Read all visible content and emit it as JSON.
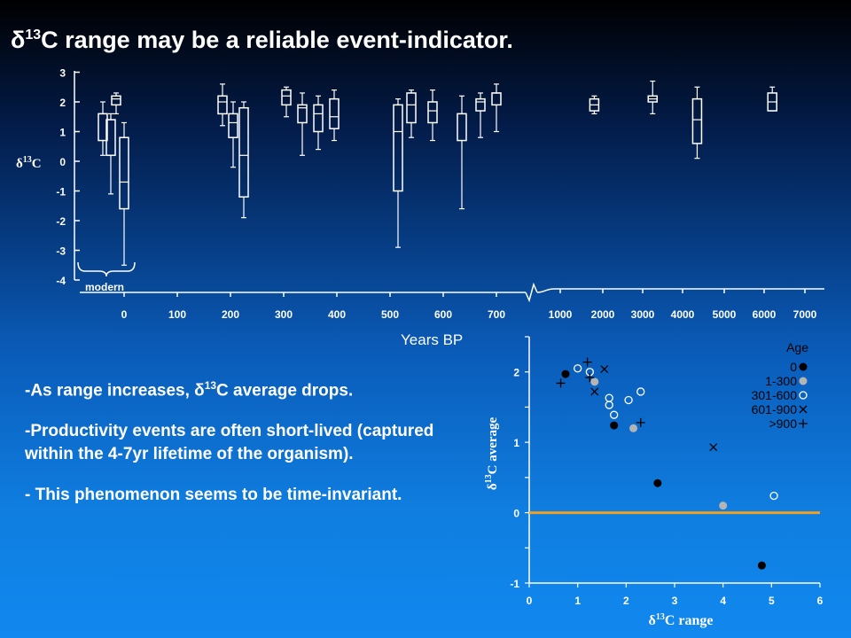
{
  "slide": {
    "title_prefix": "δ",
    "title_sup": "13",
    "title_suffix": "C range may be a reliable event-indicator.",
    "bullets": [
      {
        "pre": "-As range increases, δ",
        "sup": "13",
        "post": "C average drops."
      },
      {
        "pre": "-Productivity events are often short-lived (captured within the 4-7yr lifetime of the organism).",
        "sup": "",
        "post": ""
      },
      {
        "pre": "- This phenomenon seems to be time-invariant.",
        "sup": "",
        "post": ""
      }
    ]
  },
  "colors": {
    "zero_line": "#f0a020",
    "open_marker": "#ffffff",
    "filled_black": "#000000",
    "filled_gray": "#b4b4b4"
  },
  "chart_data": [
    {
      "type": "box",
      "ylabel": "δ13C",
      "ylabel_parts": {
        "base": "δ",
        "sup": "13",
        "tail": "C"
      },
      "xlabel": "Years BP",
      "ylim": [
        -4,
        3
      ],
      "yticks": [
        "3",
        "2",
        "1",
        "0",
        "-1",
        "-2",
        "-3",
        "-4"
      ],
      "x_scale_note": "broken axis",
      "xticks_left": [
        "0",
        "100",
        "200",
        "300",
        "400",
        "500",
        "600",
        "700"
      ],
      "xticks_right": [
        "1000",
        "2000",
        "3000",
        "4000",
        "5000",
        "6000",
        "7000"
      ],
      "annotation": "modern",
      "boxes": [
        {
          "segment": "left",
          "x": -40,
          "min": 0.2,
          "q1": 0.7,
          "median": 1.6,
          "q3": 1.6,
          "max": 2.0
        },
        {
          "segment": "left",
          "x": -25,
          "min": -1.1,
          "q1": 0.2,
          "median": 0.2,
          "q3": 1.4,
          "max": 1.6
        },
        {
          "segment": "left",
          "x": -15,
          "min": 1.6,
          "q1": 1.9,
          "median": 2.1,
          "q3": 2.2,
          "max": 2.3
        },
        {
          "segment": "left",
          "x": 0,
          "min": -3.5,
          "q1": -1.6,
          "median": -0.7,
          "q3": 0.8,
          "max": 1.3
        },
        {
          "segment": "left",
          "x": 185,
          "min": 1.2,
          "q1": 1.6,
          "median": 2.0,
          "q3": 2.2,
          "max": 2.6
        },
        {
          "segment": "left",
          "x": 205,
          "min": -0.2,
          "q1": 0.8,
          "median": 1.3,
          "q3": 1.6,
          "max": 2.0
        },
        {
          "segment": "left",
          "x": 225,
          "min": -1.9,
          "q1": -1.2,
          "median": 0.2,
          "q3": 1.8,
          "max": 2.0
        },
        {
          "segment": "left",
          "x": 305,
          "min": 1.5,
          "q1": 1.9,
          "median": 2.2,
          "q3": 2.4,
          "max": 2.5
        },
        {
          "segment": "left",
          "x": 335,
          "min": 0.2,
          "q1": 1.3,
          "median": 1.8,
          "q3": 1.9,
          "max": 2.3
        },
        {
          "segment": "left",
          "x": 365,
          "min": 0.4,
          "q1": 1.0,
          "median": 1.6,
          "q3": 1.9,
          "max": 2.2
        },
        {
          "segment": "left",
          "x": 395,
          "min": 0.7,
          "q1": 1.1,
          "median": 1.5,
          "q3": 2.1,
          "max": 2.4
        },
        {
          "segment": "left",
          "x": 515,
          "min": -2.9,
          "q1": -1.0,
          "median": 1.0,
          "q3": 1.9,
          "max": 2.1
        },
        {
          "segment": "left",
          "x": 540,
          "min": 0.8,
          "q1": 1.3,
          "median": 1.9,
          "q3": 2.3,
          "max": 2.4
        },
        {
          "segment": "left",
          "x": 580,
          "min": 0.7,
          "q1": 1.3,
          "median": 1.7,
          "q3": 2.0,
          "max": 2.4
        },
        {
          "segment": "left",
          "x": 635,
          "min": -1.6,
          "q1": 0.7,
          "median": 1.6,
          "q3": 1.6,
          "max": 2.2
        },
        {
          "segment": "left",
          "x": 670,
          "min": 0.8,
          "q1": 1.7,
          "median": 2.0,
          "q3": 2.1,
          "max": 2.3
        },
        {
          "segment": "left",
          "x": 700,
          "min": 1.0,
          "q1": 1.9,
          "median": 2.3,
          "q3": 2.3,
          "max": 2.6
        },
        {
          "segment": "right",
          "x": 1800,
          "min": 1.6,
          "q1": 1.7,
          "median": 1.9,
          "q3": 2.1,
          "max": 2.2
        },
        {
          "segment": "right",
          "x": 3250,
          "min": 1.6,
          "q1": 2.0,
          "median": 2.1,
          "q3": 2.2,
          "max": 2.7
        },
        {
          "segment": "right",
          "x": 4350,
          "min": 0.1,
          "q1": 0.6,
          "median": 1.4,
          "q3": 2.1,
          "max": 2.5
        },
        {
          "segment": "right",
          "x": 6200,
          "min": 1.7,
          "q1": 1.7,
          "median": 2.0,
          "q3": 2.3,
          "max": 2.5
        }
      ]
    },
    {
      "type": "scatter",
      "xlabel": "δ13C range",
      "xlabel_parts": {
        "base": "δ",
        "sup": "13",
        "tail": "C range"
      },
      "ylabel": "δ13C average",
      "ylabel_parts": {
        "base": "δ",
        "sup": "13",
        "tail": "C average"
      },
      "xlim": [
        0,
        6
      ],
      "ylim": [
        -1,
        2.5
      ],
      "xticks": [
        "0",
        "1",
        "2",
        "3",
        "4",
        "5",
        "6"
      ],
      "yticks": [
        "2",
        "1",
        "0",
        "-1"
      ],
      "reference_line_y": 0,
      "legend_title": "Age",
      "legend_position": "top-right",
      "series": [
        {
          "name": "0",
          "marker": "filled-black",
          "points": [
            [
              0.75,
              1.97
            ],
            [
              1.75,
              1.24
            ],
            [
              2.65,
              0.42
            ],
            [
              4.8,
              -0.75
            ]
          ]
        },
        {
          "name": "1-300",
          "marker": "filled-gray",
          "points": [
            [
              1.35,
              1.86
            ],
            [
              2.15,
              1.2
            ],
            [
              4.0,
              0.1
            ]
          ]
        },
        {
          "name": "301-600",
          "marker": "open-circle",
          "points": [
            [
              1.0,
              2.05
            ],
            [
              1.25,
              2.0
            ],
            [
              1.65,
              1.63
            ],
            [
              1.65,
              1.53
            ],
            [
              1.75,
              1.39
            ],
            [
              2.05,
              1.6
            ],
            [
              2.3,
              1.72
            ],
            [
              5.05,
              0.24
            ]
          ]
        },
        {
          "name": "601-900",
          "marker": "x",
          "points": [
            [
              1.55,
              2.04
            ],
            [
              1.35,
              1.72
            ],
            [
              3.8,
              0.93
            ]
          ]
        },
        {
          "name": ">900",
          "marker": "plus",
          "points": [
            [
              1.2,
              2.14
            ],
            [
              1.25,
              1.92
            ],
            [
              0.65,
              1.84
            ],
            [
              2.3,
              1.28
            ]
          ]
        }
      ]
    }
  ]
}
